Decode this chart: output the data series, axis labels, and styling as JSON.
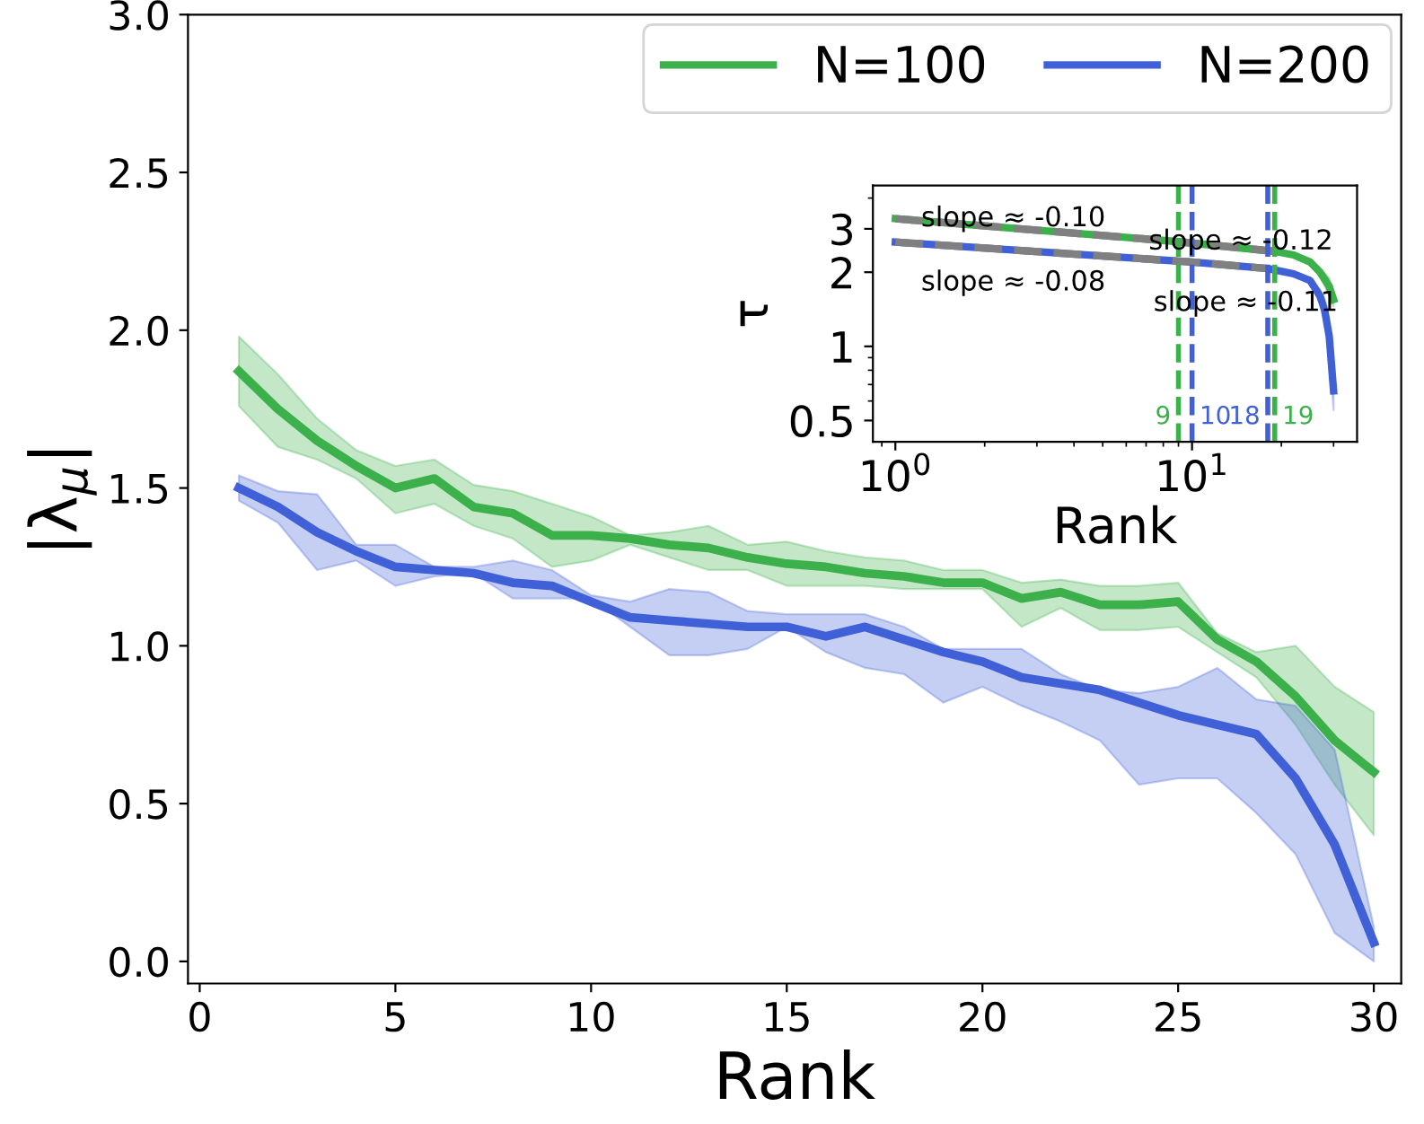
{
  "chart_data": [
    {
      "type": "line",
      "xlabel": "Rank",
      "ylabel": "|λ$_{μ}$|",
      "x": [
        1,
        2,
        3,
        4,
        5,
        6,
        7,
        8,
        9,
        10,
        11,
        12,
        13,
        14,
        15,
        16,
        17,
        18,
        19,
        20,
        21,
        22,
        23,
        24,
        25,
        26,
        27,
        28,
        29,
        30
      ],
      "xlim": [
        -0.3,
        30.7
      ],
      "xticks": [
        0,
        5,
        10,
        15,
        20,
        25,
        30
      ],
      "ylim": [
        -0.07,
        3.0
      ],
      "yticks": [
        {
          "value": 0,
          "label": "0.0"
        },
        {
          "value": 0.5,
          "label": "0.5"
        },
        {
          "value": 1,
          "label": "1.0"
        },
        {
          "value": 1.5,
          "label": "1.5"
        },
        {
          "value": 2,
          "label": "2.0"
        },
        {
          "value": 2.5,
          "label": "2.5"
        },
        {
          "value": 3,
          "label": "3.0"
        }
      ],
      "legend": "top right",
      "grid": false,
      "marker": "none",
      "line_style": "solid",
      "series": [
        {
          "name": "N=100",
          "color": "#3cb04a",
          "values": [
            1.87,
            1.75,
            1.65,
            1.57,
            1.5,
            1.53,
            1.44,
            1.42,
            1.35,
            1.35,
            1.34,
            1.32,
            1.31,
            1.28,
            1.26,
            1.25,
            1.23,
            1.22,
            1.2,
            1.2,
            1.15,
            1.17,
            1.13,
            1.13,
            1.14,
            1.02,
            0.95,
            0.84,
            0.7,
            0.6
          ],
          "lower": [
            1.76,
            1.63,
            1.59,
            1.53,
            1.42,
            1.45,
            1.38,
            1.34,
            1.25,
            1.27,
            1.32,
            1.28,
            1.24,
            1.24,
            1.19,
            1.19,
            1.19,
            1.18,
            1.18,
            1.18,
            1.06,
            1.12,
            1.05,
            1.05,
            1.06,
            0.98,
            0.9,
            0.75,
            0.56,
            0.4
          ],
          "upper": [
            1.98,
            1.86,
            1.72,
            1.62,
            1.57,
            1.59,
            1.51,
            1.49,
            1.45,
            1.41,
            1.35,
            1.36,
            1.38,
            1.32,
            1.33,
            1.3,
            1.28,
            1.27,
            1.24,
            1.24,
            1.2,
            1.21,
            1.19,
            1.19,
            1.2,
            1.04,
            0.98,
            1.0,
            0.87,
            0.79
          ]
        },
        {
          "name": "N=200",
          "color": "#4060d8",
          "values": [
            1.5,
            1.44,
            1.36,
            1.3,
            1.25,
            1.24,
            1.23,
            1.2,
            1.19,
            1.14,
            1.09,
            1.08,
            1.07,
            1.06,
            1.06,
            1.03,
            1.06,
            1.02,
            0.98,
            0.95,
            0.9,
            0.88,
            0.86,
            0.82,
            0.78,
            0.75,
            0.72,
            0.58,
            0.37,
            0.06
          ],
          "lower": [
            1.46,
            1.39,
            1.24,
            1.27,
            1.19,
            1.22,
            1.23,
            1.15,
            1.15,
            1.15,
            1.06,
            0.97,
            0.97,
            0.99,
            1.06,
            0.98,
            0.93,
            0.91,
            0.82,
            0.87,
            0.81,
            0.76,
            0.7,
            0.56,
            0.58,
            0.58,
            0.47,
            0.34,
            0.09,
            0.0
          ],
          "upper": [
            1.54,
            1.49,
            1.48,
            1.32,
            1.32,
            1.25,
            1.25,
            1.27,
            1.24,
            1.16,
            1.14,
            1.18,
            1.17,
            1.11,
            1.1,
            1.1,
            1.1,
            1.06,
            0.99,
            0.99,
            0.99,
            0.91,
            0.86,
            0.85,
            0.87,
            0.93,
            0.83,
            0.81,
            0.67,
            0.11
          ]
        }
      ]
    },
    {
      "type": "line",
      "xlabel": "Rank",
      "ylabel": "τ",
      "log": "xy",
      "xlim": [
        0.84,
        36
      ],
      "xticks": [
        {
          "value": 1,
          "label": "10$^{0}$"
        },
        {
          "value": 10,
          "label": "10$^{1}$"
        }
      ],
      "ylim": [
        0.41,
        4.5
      ],
      "yticks": [
        0.5,
        1,
        2,
        3
      ],
      "legend": false,
      "grid": false,
      "marker": "none",
      "series": [
        {
          "color": "#3cb04a",
          "x": [
            1,
            9,
            19,
            22,
            25,
            27,
            29,
            30
          ],
          "values": [
            3.3,
            2.66,
            2.43,
            2.35,
            2.2,
            2.0,
            1.75,
            1.55
          ],
          "lower": [
            3.26,
            2.63,
            2.4,
            2.31,
            2.15,
            1.93,
            1.6,
            1.45
          ],
          "upper": [
            3.34,
            2.69,
            2.46,
            2.39,
            2.25,
            2.07,
            1.9,
            1.65
          ]
        },
        {
          "color": "#4060d8",
          "x": [
            1,
            10,
            18,
            22,
            25,
            27,
            28,
            29,
            30
          ],
          "values": [
            2.65,
            2.2,
            2.07,
            1.97,
            1.85,
            1.6,
            1.4,
            1.1,
            0.66
          ],
          "lower": [
            2.62,
            2.17,
            2.04,
            1.93,
            1.8,
            1.5,
            1.25,
            0.95,
            0.55
          ],
          "upper": [
            2.68,
            2.23,
            2.1,
            2.01,
            1.9,
            1.7,
            1.55,
            1.25,
            0.75
          ]
        },
        {
          "color": "#808080",
          "line_style": "dashed",
          "x": [
            1,
            9,
            19
          ],
          "values": [
            3.3,
            2.66,
            2.43
          ]
        },
        {
          "color": "#808080",
          "line_style": "dashed",
          "x": [
            1,
            10,
            18
          ],
          "values": [
            2.65,
            2.2,
            2.07
          ]
        }
      ],
      "ref_lines": [
        {
          "axis": "x",
          "value": 9,
          "label": "9",
          "color": "#3cb04a",
          "line_style": "dashed"
        },
        {
          "axis": "x",
          "value": 10,
          "label": "10",
          "color": "#4060d8",
          "line_style": "dashed"
        },
        {
          "axis": "x",
          "value": 18,
          "label": "18",
          "color": "#4060d8",
          "line_style": "dashed"
        },
        {
          "axis": "x",
          "value": 19,
          "label": "19",
          "color": "#3cb04a",
          "line_style": "dashed"
        }
      ],
      "annotations": [
        "slope ≈ -0.10",
        "slope ≈ -0.12",
        "slope ≈ -0.08",
        "slope ≈ -0.11"
      ]
    }
  ]
}
